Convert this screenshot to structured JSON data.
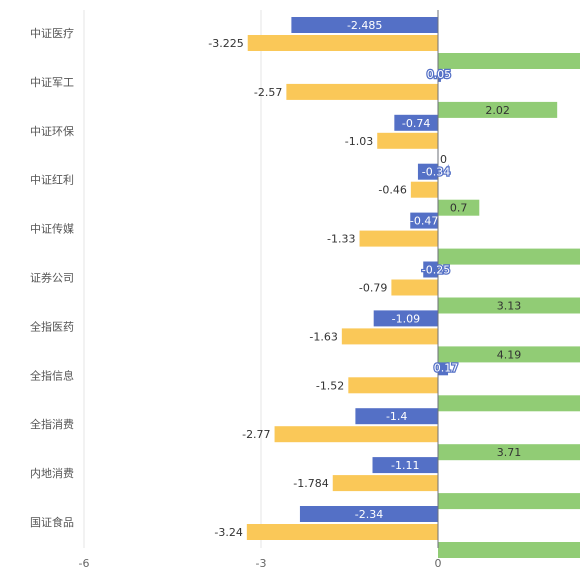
{
  "chart_data": {
    "type": "bar",
    "orientation": "horizontal",
    "title": "",
    "xlabel": "",
    "ylabel": "",
    "categories": [
      "中证医疗",
      "中证军工",
      "中证环保",
      "中证红利",
      "中证传媒",
      "证券公司",
      "全指医药",
      "全指信息",
      "全指消费",
      "内地消费",
      "国证食品"
    ],
    "series": [
      {
        "color": "#5470c6",
        "values": [
          -2.485,
          0.05,
          -0.74,
          -0.34,
          -0.47,
          -0.25,
          -1.09,
          0.17,
          -1.4,
          -1.11,
          -2.34
        ]
      },
      {
        "color": "#fac858",
        "values": [
          -3.225,
          -2.57,
          -1.03,
          -0.46,
          -1.33,
          -0.79,
          -1.63,
          -1.52,
          -2.77,
          -1.784,
          -3.24
        ]
      },
      {
        "color": "#91cc75",
        "values": [
          8,
          2.02,
          0,
          0.7,
          8,
          3.13,
          4.19,
          8,
          3.71,
          8,
          8
        ],
        "labels": [
          "",
          "2.02",
          "0",
          "0.7",
          "",
          "3.13",
          "4.19",
          "",
          "3.71",
          "",
          ""
        ]
      }
    ],
    "xlim": [
      -6,
      8
    ],
    "xticks": [
      -6,
      -3,
      0
    ],
    "grid": true,
    "legend": "none"
  }
}
